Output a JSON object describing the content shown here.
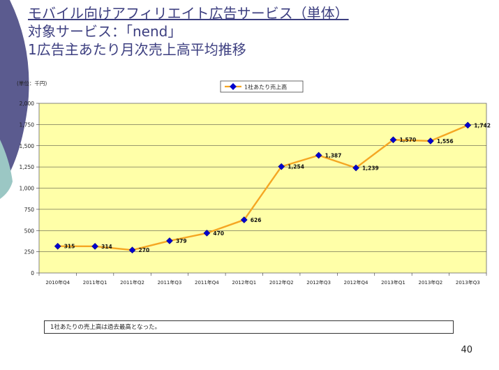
{
  "slide": {
    "title_line1": "モバイル向けアフィリエイト広告サービス（単体）",
    "title_line2": "対象サービス：「nend」",
    "title_line3": "1広告主あたり月次売上高平均推移",
    "note": "1社あたりの売上高は過去最高となった。",
    "page_number": "40"
  },
  "colors": {
    "title": "#3d3f80",
    "plot_bg": "#ffffa8",
    "line": "#f5a623",
    "marker": "#0000cc",
    "deco_dark": "#5b5b8f",
    "deco_teal": "#9bc7c4"
  },
  "chart_data": {
    "type": "line",
    "unit_label": "(単位：千円)",
    "categories": [
      "2010年Q4",
      "2011年Q1",
      "2011年Q2",
      "2011年Q3",
      "2011年Q4",
      "2012年Q1",
      "2012年Q2",
      "2012年Q3",
      "2012年Q4",
      "2013年Q1",
      "2013年Q2",
      "2013年Q3"
    ],
    "series": [
      {
        "name": "1社あたり売上高",
        "values": [
          315,
          314,
          270,
          379,
          470,
          626,
          1254,
          1387,
          1239,
          1570,
          1556,
          1742
        ],
        "labels": [
          "315",
          "314",
          "270",
          "379",
          "470",
          "626",
          "1,254",
          "1,387",
          "1,239",
          "1,570",
          "1,556",
          "1,742"
        ]
      }
    ],
    "ylim": [
      0,
      2000
    ],
    "yticks": [
      0,
      250,
      500,
      750,
      1000,
      1250,
      1500,
      1750,
      2000
    ],
    "ytick_labels": [
      "0",
      "250",
      "500",
      "750",
      "1,000",
      "1,250",
      "1,500",
      "1,750",
      "2,000"
    ],
    "grid": true,
    "legend_position": "top-right"
  }
}
